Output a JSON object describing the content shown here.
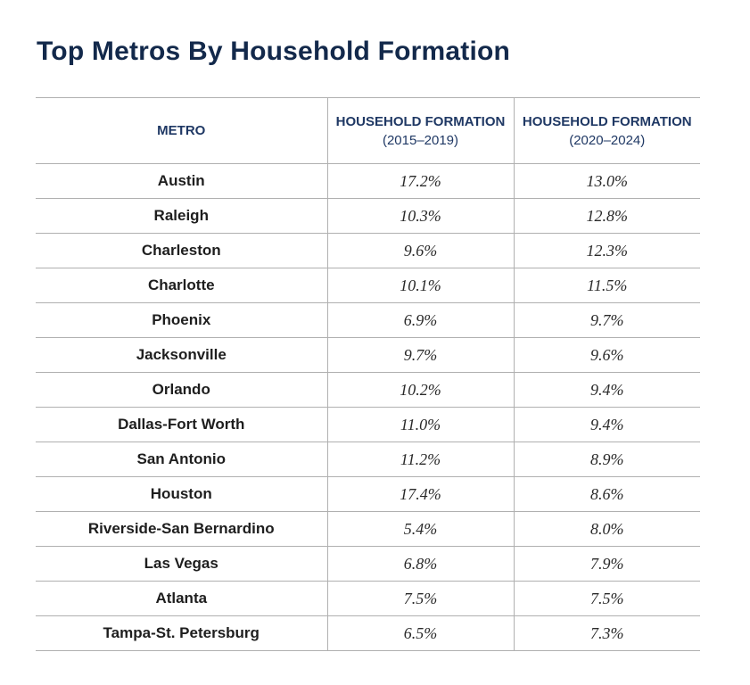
{
  "title": "Top Metros By Household Formation",
  "table": {
    "headers": {
      "metro": "METRO",
      "formation_2015_2019": {
        "line1": "HOUSEHOLD FORMATION",
        "line2": "(2015–2019)"
      },
      "formation_2020_2024": {
        "line1": "HOUSEHOLD FORMATION",
        "line2": "(2020–2024)"
      }
    },
    "rows": [
      {
        "metro": "Austin",
        "v2015_2019": "17.2%",
        "v2020_2024": "13.0%"
      },
      {
        "metro": "Raleigh",
        "v2015_2019": "10.3%",
        "v2020_2024": "12.8%"
      },
      {
        "metro": "Charleston",
        "v2015_2019": "9.6%",
        "v2020_2024": "12.3%"
      },
      {
        "metro": "Charlotte",
        "v2015_2019": "10.1%",
        "v2020_2024": "11.5%"
      },
      {
        "metro": "Phoenix",
        "v2015_2019": "6.9%",
        "v2020_2024": "9.7%"
      },
      {
        "metro": "Jacksonville",
        "v2015_2019": "9.7%",
        "v2020_2024": "9.6%"
      },
      {
        "metro": "Orlando",
        "v2015_2019": "10.2%",
        "v2020_2024": "9.4%"
      },
      {
        "metro": "Dallas-Fort Worth",
        "v2015_2019": "11.0%",
        "v2020_2024": "9.4%"
      },
      {
        "metro": "San Antonio",
        "v2015_2019": "11.2%",
        "v2020_2024": "8.9%"
      },
      {
        "metro": "Houston",
        "v2015_2019": "17.4%",
        "v2020_2024": "8.6%"
      },
      {
        "metro": "Riverside-San Bernardino",
        "v2015_2019": "5.4%",
        "v2020_2024": "8.0%"
      },
      {
        "metro": "Las Vegas",
        "v2015_2019": "6.8%",
        "v2020_2024": "7.9%"
      },
      {
        "metro": "Atlanta",
        "v2015_2019": "7.5%",
        "v2020_2024": "7.5%"
      },
      {
        "metro": "Tampa-St. Petersburg",
        "v2015_2019": "6.5%",
        "v2020_2024": "7.3%"
      }
    ]
  },
  "colors": {
    "title": "#13294b",
    "header_text": "#1f3864",
    "rule": "#b0b0b0",
    "body_text": "#222222"
  }
}
